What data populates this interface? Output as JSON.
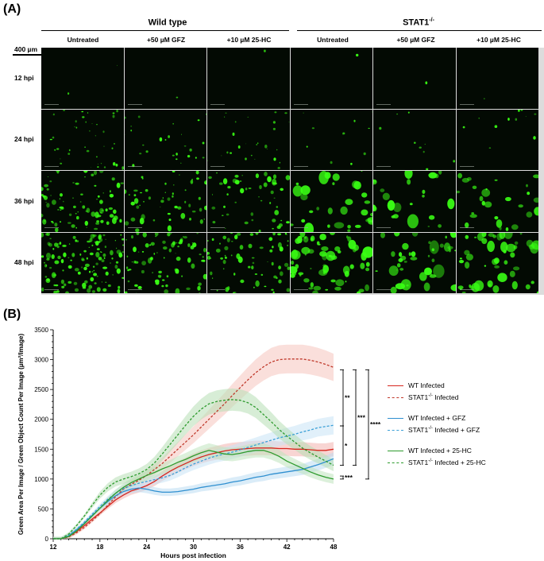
{
  "panels": {
    "a": "(A)",
    "b": "(B)"
  },
  "micrograph_grid": {
    "groups": [
      {
        "title": "Wild type",
        "title_sup": ""
      },
      {
        "title": "STAT1",
        "title_sup": "-/-"
      }
    ],
    "columns": [
      "Untreated",
      "+50 µM GFZ",
      "+10 µM 25-HC",
      "Untreated",
      "+50 µM GFZ",
      "+10 µM 25-HC"
    ],
    "rows": [
      "12 hpi",
      "24 hpi",
      "36 hpi",
      "48 hpi"
    ],
    "scale_bar": "400 µm",
    "colors": {
      "fluorescence": "#39ff14",
      "background": "#030a03"
    }
  },
  "chart_data": {
    "type": "line",
    "xlabel": "Hours post infection",
    "ylabel": "Green Area Per Image / Green Object Count Per Image (µm²/Image)",
    "xlim": [
      12,
      48
    ],
    "ylim": [
      0,
      3500
    ],
    "xticks": [
      12,
      18,
      24,
      30,
      36,
      42,
      48
    ],
    "yticks": [
      0,
      500,
      1000,
      1500,
      2000,
      2500,
      3000,
      3500
    ],
    "x": [
      12,
      13,
      14,
      15,
      16,
      17,
      18,
      19,
      20,
      21,
      22,
      23,
      24,
      25,
      26,
      27,
      28,
      29,
      30,
      31,
      32,
      33,
      34,
      35,
      36,
      37,
      38,
      39,
      40,
      41,
      42,
      43,
      44,
      45,
      46,
      47,
      48
    ],
    "series": [
      {
        "name": "WT Infected",
        "color": "#d7261e",
        "dash": "solid",
        "band": "#f2b3ae",
        "values": [
          0,
          0,
          40,
          120,
          220,
          330,
          430,
          540,
          650,
          730,
          800,
          840,
          890,
          960,
          1050,
          1130,
          1200,
          1260,
          1320,
          1370,
          1410,
          1440,
          1470,
          1490,
          1500,
          1510,
          1520,
          1520,
          1520,
          1510,
          1510,
          1500,
          1500,
          1490,
          1480,
          1480,
          1500
        ]
      },
      {
        "name": "STAT1-/- Infected",
        "color": "#c0392b",
        "dash": "dash",
        "band": "#f5c4bd",
        "values": [
          0,
          0,
          30,
          100,
          190,
          300,
          420,
          560,
          700,
          830,
          910,
          980,
          1060,
          1160,
          1260,
          1380,
          1500,
          1620,
          1740,
          1870,
          2000,
          2130,
          2260,
          2400,
          2530,
          2660,
          2780,
          2880,
          2960,
          3000,
          3010,
          3010,
          3010,
          2990,
          2960,
          2920,
          2870
        ]
      },
      {
        "name": "WT Infected + GFZ",
        "color": "#2f8fd0",
        "dash": "solid",
        "band": "#bcdcf2",
        "values": [
          0,
          0,
          50,
          150,
          260,
          390,
          510,
          620,
          720,
          790,
          830,
          850,
          830,
          800,
          780,
          780,
          790,
          810,
          830,
          860,
          880,
          900,
          920,
          950,
          970,
          1000,
          1030,
          1050,
          1080,
          1100,
          1120,
          1140,
          1160,
          1200,
          1240,
          1290,
          1340
        ]
      },
      {
        "name": "STAT1-/- Infected + GFZ",
        "color": "#3a9fd6",
        "dash": "dash",
        "band": "#c9e4f5",
        "values": [
          0,
          0,
          60,
          160,
          280,
          410,
          540,
          660,
          760,
          840,
          890,
          930,
          960,
          990,
          1020,
          1060,
          1120,
          1190,
          1250,
          1300,
          1350,
          1390,
          1420,
          1450,
          1490,
          1530,
          1570,
          1610,
          1650,
          1690,
          1720,
          1750,
          1790,
          1820,
          1860,
          1880,
          1900
        ]
      },
      {
        "name": "WT Infected + 25-HC",
        "color": "#2e9b2e",
        "dash": "solid",
        "band": "#bfe3bd",
        "values": [
          0,
          0,
          40,
          130,
          250,
          380,
          510,
          640,
          760,
          860,
          940,
          1000,
          1060,
          1110,
          1170,
          1220,
          1280,
          1330,
          1390,
          1440,
          1480,
          1450,
          1420,
          1410,
          1430,
          1460,
          1480,
          1480,
          1440,
          1380,
          1300,
          1240,
          1180,
          1120,
          1070,
          1030,
          1000
        ]
      },
      {
        "name": "STAT1-/- Infected + 25-HC",
        "color": "#2e9b2e",
        "dash": "dash",
        "band": "#b7dfb4",
        "values": [
          0,
          0,
          80,
          220,
          380,
          560,
          730,
          860,
          950,
          1000,
          1040,
          1090,
          1160,
          1270,
          1420,
          1580,
          1740,
          1900,
          2050,
          2170,
          2260,
          2300,
          2320,
          2330,
          2320,
          2280,
          2200,
          2080,
          1960,
          1830,
          1720,
          1620,
          1520,
          1440,
          1370,
          1300,
          1230
        ]
      }
    ],
    "significance": [
      {
        "label": "**",
        "y_top": 2830,
        "y_bottom": 1890
      },
      {
        "label": "*",
        "y_top": 1890,
        "y_bottom": 1230
      },
      {
        "label": "***",
        "y_top": 1050,
        "y_bottom": 1000
      },
      {
        "label": "***",
        "y_top": 2830,
        "y_bottom": 1230
      },
      {
        "label": "****",
        "y_top": 2830,
        "y_bottom": 1000
      }
    ],
    "legend": [
      {
        "label": "WT Infected",
        "sup": ""
      },
      {
        "label": "STAT1",
        "sup": "-/-",
        "suffix": " Infected"
      },
      {
        "label": "WT Infected + GFZ",
        "sup": ""
      },
      {
        "label": "STAT1",
        "sup": "-/-",
        "suffix": " Infected + GFZ"
      },
      {
        "label": "WT Infected + 25-HC",
        "sup": ""
      },
      {
        "label": "STAT1",
        "sup": "-/-",
        "suffix": " Infected + 25-HC"
      }
    ],
    "legend_placement": "right"
  }
}
